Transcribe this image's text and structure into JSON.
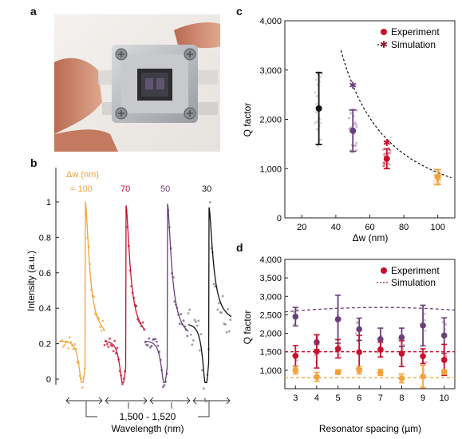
{
  "panels": {
    "a": {
      "letter": "a"
    },
    "b": {
      "letter": "b"
    },
    "c": {
      "letter": "c"
    },
    "d": {
      "letter": "d"
    }
  },
  "colors": {
    "w100": "#f2a33a",
    "w70": "#c8102e",
    "w50": "#6b3f7a",
    "w30": "#111111",
    "noise30": "#7f7f7f"
  },
  "chart_data": [
    {
      "id": "b",
      "type": "line",
      "xlabel": "Wavelength (nm)",
      "ylabel": "Intensity (a.u.)",
      "y_ticks": [
        "0",
        "0.2",
        "0.4",
        "0.6",
        "0.8",
        "1"
      ],
      "ylim": [
        -0.05,
        1.08
      ],
      "x_range_text": "1,500 - 1,520",
      "legend_title": "Δw (nm)",
      "series": [
        {
          "name": "= 100",
          "resonance_peak": 1.0,
          "baseline": 0.2
        },
        {
          "name": "70",
          "resonance_peak": 0.98,
          "baseline": 0.2
        },
        {
          "name": "50",
          "resonance_peak": 0.99,
          "baseline": 0.2
        },
        {
          "name": "30",
          "resonance_peak": 0.97,
          "baseline": 0.3
        }
      ]
    },
    {
      "id": "c",
      "type": "scatter",
      "xlabel": "Δw (nm)",
      "ylabel": "Q factor",
      "x_ticks": [
        "20",
        "40",
        "60",
        "80",
        "100"
      ],
      "y_ticks": [
        "0",
        "1,000",
        "2,000",
        "3,000",
        "4,000"
      ],
      "xlim": [
        10,
        110
      ],
      "ylim": [
        0,
        4000
      ],
      "legend": [
        "Experiment",
        "Simulation"
      ],
      "experiment": [
        {
          "x": 30,
          "y": 2220,
          "err": 730
        },
        {
          "x": 50,
          "y": 1770,
          "err": 420
        },
        {
          "x": 70,
          "y": 1200,
          "err": 200
        },
        {
          "x": 100,
          "y": 830,
          "err": 150
        }
      ],
      "simulation": [
        {
          "x": 50,
          "y": 2690
        },
        {
          "x": 70,
          "y": 1520
        },
        {
          "x": 100,
          "y": 830
        }
      ]
    },
    {
      "id": "d",
      "type": "scatter",
      "xlabel": "Resonator spacing (µm)",
      "ylabel": "Q factor",
      "x_ticks": [
        "3",
        "4",
        "5",
        "6",
        "7",
        "8",
        "9",
        "10"
      ],
      "y_ticks": [
        "1,000",
        "1,500",
        "2,000",
        "2,500",
        "3,000",
        "3,500",
        "4,000"
      ],
      "xlim": [
        2.5,
        10.5
      ],
      "ylim": [
        500,
        4000
      ],
      "legend": [
        "Experiment",
        "Simulation"
      ],
      "series": [
        {
          "key": "w50",
          "sim_level": 2700,
          "x": [
            3,
            4,
            5,
            6,
            7,
            8,
            9,
            10
          ],
          "y": [
            2450,
            1760,
            2380,
            2110,
            1840,
            1890,
            2210,
            1940
          ],
          "err": [
            250,
            200,
            650,
            300,
            300,
            250,
            550,
            480
          ]
        },
        {
          "key": "w70",
          "sim_level": 1500,
          "x": [
            3,
            4,
            5,
            6,
            7,
            8,
            9,
            10
          ],
          "y": [
            1390,
            1510,
            1580,
            1490,
            1560,
            1450,
            1380,
            1280
          ],
          "err": [
            280,
            450,
            250,
            450,
            200,
            350,
            200,
            420
          ]
        },
        {
          "key": "w100",
          "sim_level": 800,
          "x": [
            3,
            4,
            5,
            6,
            7,
            8,
            9,
            10
          ],
          "y": [
            1000,
            820,
            950,
            1000,
            940,
            780,
            830,
            950
          ],
          "err": [
            100,
            120,
            60,
            100,
            80,
            120,
            300,
            60
          ]
        }
      ]
    }
  ]
}
